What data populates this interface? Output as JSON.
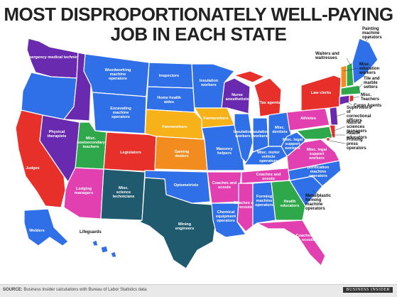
{
  "title": {
    "line1": "MOST DISPROPORTIONATELY WELL-PAYING",
    "line2": "JOB IN EACH STATE"
  },
  "source": {
    "label": "SOURCE:",
    "text": "Business Insider calculations with Bureau of Labor Statistics data"
  },
  "brand": "BUSINESS INSIDER",
  "colors": {
    "blue": "#2f6fe8",
    "purple": "#6a2ab0",
    "red": "#e8302a",
    "orange": "#f28c1e",
    "magenta": "#e23fb0",
    "navy": "#1f5a6e",
    "green": "#2ea84a",
    "yellow": "#f7b21a"
  },
  "states": {
    "WA": "Emergency medical technicians",
    "ID": "Skincare specialists",
    "MT": "Woodworking machine operators",
    "ND": "Inspectors",
    "MN": "Insulation workers",
    "OR": "Logging equipment operators",
    "WY": "Excavating machine operators",
    "SD": "Home health aides",
    "WI": "Nurse anesthetists",
    "MI": "Tax agents",
    "NV": "Physical therapists",
    "UT": "Misc. postsecondary teachers",
    "CO": "Legislators",
    "NE": "Farmworkers",
    "IA": "Farmworkers",
    "IL": "Insulation workers",
    "IN": "Insulation workers",
    "OH": "Misc. dentists",
    "PA": "Athletes",
    "CA": "Judges",
    "KS": "Gaming dealers",
    "MO": "Masonry helpers",
    "KY": "Misc. motor vehicle operators",
    "WV": "Misc. legal support workers",
    "VA": "Misc. legal support workers",
    "AZ": "Lodging managers",
    "NM": "Misc. science technicians",
    "OK": "Optometrists",
    "AR": "Coaches and scouts",
    "TN": "Coaches and scouts",
    "NC": "Liquid purification machine operators",
    "TX": "Mining engineers",
    "LA": "Chemical equipment operators",
    "MS": "Coaches and scouts",
    "AL": "Forming machine operators",
    "GA": "Health educators",
    "SC": "Metal/plastic forming machine operators",
    "FL": "Coaches and scouts",
    "AK": "Welders",
    "HI": "Lifeguards",
    "ME": "Painting machine operators",
    "NH": "Waiters and waitresses",
    "VT": "Misc. education workers",
    "NY": "Law clerks",
    "MA": "Tile and marble setters",
    "RI": "Misc. Teachers",
    "CT": "Cargo Agents",
    "NJ": "Supervisors of correctional officers",
    "DE": "Natural sciences managers",
    "MD": "Health educators",
    "DC": "Printing press operators"
  }
}
